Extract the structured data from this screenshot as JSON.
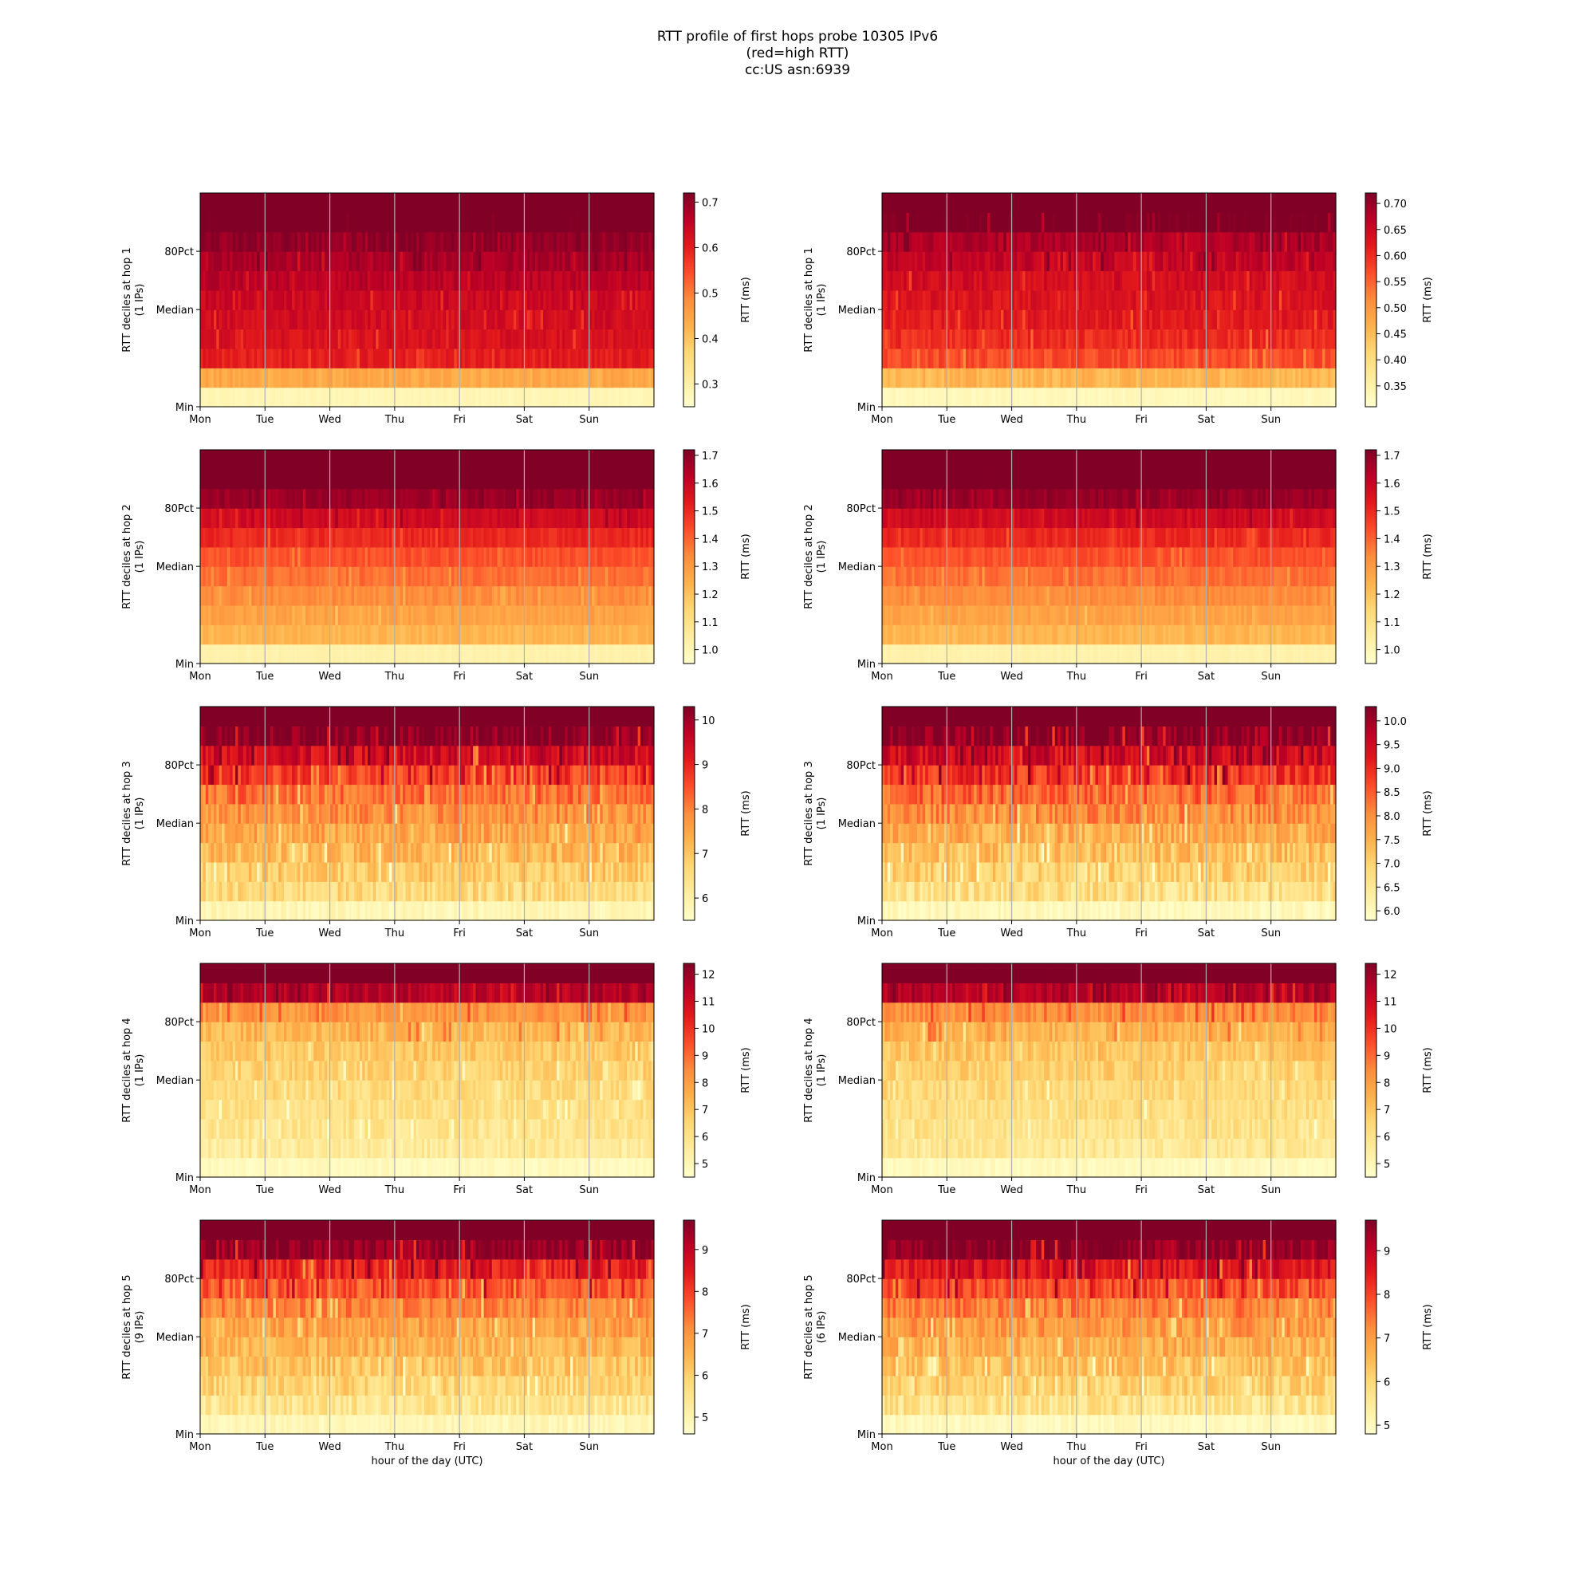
{
  "figure": {
    "title_lines": [
      "RTT profile of first hops probe 10305 IPv6",
      "(red=high RTT)",
      "cc:US asn:6939"
    ]
  },
  "colors": {
    "colormap": "YlOrRd",
    "stops": [
      "#ffffcc",
      "#ffeda0",
      "#fed976",
      "#feb24c",
      "#fd8d3c",
      "#fc4e2a",
      "#e31a1c",
      "#bd0026",
      "#800026"
    ],
    "vline": "#b0b0b0"
  },
  "chart_data": [
    {
      "type": "heatmap",
      "panel": "left",
      "hop": 1,
      "ylabel": "RTT deciles at hop 1",
      "ylabel2": "(1 IPs)",
      "xticks": [
        "Mon",
        "Tue",
        "Wed",
        "Thu",
        "Fri",
        "Sat",
        "Sun"
      ],
      "yticks": [
        "Min",
        "Median",
        "80Pct"
      ],
      "cbar_label": "RTT (ms)",
      "cbar_ticks": [
        0.3,
        0.4,
        0.5,
        0.6,
        0.7
      ],
      "cbar_tick_labels": [
        "0.3",
        "0.4",
        "0.5",
        "0.6",
        "0.7"
      ],
      "vmin": 0.25,
      "vmax": 0.72,
      "decile_values": [
        0.28,
        0.44,
        0.6,
        0.62,
        0.63,
        0.64,
        0.66,
        0.68,
        0.7,
        0.75,
        0.8
      ],
      "noise": 0.015
    },
    {
      "type": "heatmap",
      "panel": "right",
      "hop": 1,
      "ylabel": "RTT deciles at hop 1",
      "ylabel2": "(1 IPs)",
      "xticks": [
        "Mon",
        "Tue",
        "Wed",
        "Thu",
        "Fri",
        "Sat",
        "Sun"
      ],
      "yticks": [
        "Min",
        "Median",
        "80Pct"
      ],
      "cbar_label": "RTT (ms)",
      "cbar_ticks": [
        0.35,
        0.4,
        0.45,
        0.5,
        0.55,
        0.6,
        0.65,
        0.7
      ],
      "cbar_tick_labels": [
        "0.35",
        "0.40",
        "0.45",
        "0.50",
        "0.55",
        "0.60",
        "0.65",
        "0.70"
      ],
      "vmin": 0.31,
      "vmax": 0.72,
      "decile_values": [
        0.33,
        0.46,
        0.57,
        0.6,
        0.62,
        0.63,
        0.64,
        0.66,
        0.68,
        0.73,
        0.8
      ],
      "noise": 0.015
    },
    {
      "type": "heatmap",
      "panel": "left",
      "hop": 2,
      "ylabel": "RTT deciles at hop 2",
      "ylabel2": "(1 IPs)",
      "xticks": [
        "Mon",
        "Tue",
        "Wed",
        "Thu",
        "Fri",
        "Sat",
        "Sun"
      ],
      "yticks": [
        "Min",
        "Median",
        "80Pct"
      ],
      "cbar_label": "RTT (ms)",
      "cbar_ticks": [
        1.0,
        1.1,
        1.2,
        1.3,
        1.4,
        1.5,
        1.6,
        1.7
      ],
      "cbar_tick_labels": [
        "1.0",
        "1.1",
        "1.2",
        "1.3",
        "1.4",
        "1.5",
        "1.6",
        "1.7"
      ],
      "vmin": 0.95,
      "vmax": 1.72,
      "decile_values": [
        1.02,
        1.23,
        1.28,
        1.33,
        1.38,
        1.43,
        1.5,
        1.58,
        1.68,
        1.8,
        1.9
      ],
      "noise": 0.02
    },
    {
      "type": "heatmap",
      "panel": "right",
      "hop": 2,
      "ylabel": "RTT deciles at hop 2",
      "ylabel2": "(1 IPs)",
      "xticks": [
        "Mon",
        "Tue",
        "Wed",
        "Thu",
        "Fri",
        "Sat",
        "Sun"
      ],
      "yticks": [
        "Min",
        "Median",
        "80Pct"
      ],
      "cbar_label": "RTT (ms)",
      "cbar_ticks": [
        1.0,
        1.1,
        1.2,
        1.3,
        1.4,
        1.5,
        1.6,
        1.7
      ],
      "cbar_tick_labels": [
        "1.0",
        "1.1",
        "1.2",
        "1.3",
        "1.4",
        "1.5",
        "1.6",
        "1.7"
      ],
      "vmin": 0.95,
      "vmax": 1.72,
      "decile_values": [
        1.02,
        1.23,
        1.28,
        1.33,
        1.38,
        1.43,
        1.5,
        1.58,
        1.68,
        1.8,
        1.9
      ],
      "noise": 0.02
    },
    {
      "type": "heatmap",
      "panel": "left",
      "hop": 3,
      "ylabel": "RTT deciles at hop 3",
      "ylabel2": "(1 IPs)",
      "xticks": [
        "Mon",
        "Tue",
        "Wed",
        "Thu",
        "Fri",
        "Sat",
        "Sun"
      ],
      "yticks": [
        "Min",
        "Median",
        "80Pct"
      ],
      "cbar_label": "RTT (ms)",
      "cbar_ticks": [
        6,
        7,
        8,
        9,
        10
      ],
      "cbar_tick_labels": [
        "6",
        "7",
        "8",
        "9",
        "10"
      ],
      "vmin": 5.5,
      "vmax": 10.3,
      "decile_values": [
        5.8,
        6.6,
        6.9,
        7.2,
        7.5,
        7.8,
        8.2,
        8.7,
        9.4,
        10.2,
        11.0
      ],
      "noise": 0.35
    },
    {
      "type": "heatmap",
      "panel": "right",
      "hop": 3,
      "ylabel": "RTT deciles at hop 3",
      "ylabel2": "(1 IPs)",
      "xticks": [
        "Mon",
        "Tue",
        "Wed",
        "Thu",
        "Fri",
        "Sat",
        "Sun"
      ],
      "yticks": [
        "Min",
        "Median",
        "80Pct"
      ],
      "cbar_label": "RTT (ms)",
      "cbar_ticks": [
        6.0,
        6.5,
        7.0,
        7.5,
        8.0,
        8.5,
        9.0,
        9.5,
        10.0
      ],
      "cbar_tick_labels": [
        "6.0",
        "6.5",
        "7.0",
        "7.5",
        "8.0",
        "8.5",
        "9.0",
        "9.5",
        "10.0"
      ],
      "vmin": 5.8,
      "vmax": 10.3,
      "decile_values": [
        6.0,
        6.7,
        7.0,
        7.3,
        7.6,
        8.0,
        8.4,
        8.9,
        9.5,
        10.2,
        11.0
      ],
      "noise": 0.35
    },
    {
      "type": "heatmap",
      "panel": "left",
      "hop": 4,
      "ylabel": "RTT deciles at hop 4",
      "ylabel2": "(1 IPs)",
      "xticks": [
        "Mon",
        "Tue",
        "Wed",
        "Thu",
        "Fri",
        "Sat",
        "Sun"
      ],
      "yticks": [
        "Min",
        "Median",
        "80Pct"
      ],
      "cbar_label": "RTT (ms)",
      "cbar_ticks": [
        5,
        6,
        7,
        8,
        9,
        10,
        11,
        12
      ],
      "cbar_tick_labels": [
        "5",
        "6",
        "7",
        "8",
        "9",
        "10",
        "11",
        "12"
      ],
      "vmin": 4.5,
      "vmax": 12.4,
      "decile_values": [
        4.8,
        5.6,
        5.9,
        6.1,
        6.3,
        6.6,
        6.9,
        7.3,
        8.2,
        11.5,
        12.6
      ],
      "noise": 0.4
    },
    {
      "type": "heatmap",
      "panel": "right",
      "hop": 4,
      "ylabel": "RTT deciles at hop 4",
      "ylabel2": "(1 IPs)",
      "xticks": [
        "Mon",
        "Tue",
        "Wed",
        "Thu",
        "Fri",
        "Sat",
        "Sun"
      ],
      "yticks": [
        "Min",
        "Median",
        "80Pct"
      ],
      "cbar_label": "RTT (ms)",
      "cbar_ticks": [
        5,
        6,
        7,
        8,
        9,
        10,
        11,
        12
      ],
      "cbar_tick_labels": [
        "5",
        "6",
        "7",
        "8",
        "9",
        "10",
        "11",
        "12"
      ],
      "vmin": 4.5,
      "vmax": 12.4,
      "decile_values": [
        4.8,
        5.7,
        6.0,
        6.2,
        6.4,
        6.7,
        7.0,
        7.4,
        8.3,
        11.5,
        12.6
      ],
      "noise": 0.4
    },
    {
      "type": "heatmap",
      "panel": "left",
      "hop": 5,
      "ylabel": "RTT deciles at hop 5",
      "ylabel2": "(9 IPs)",
      "xticks": [
        "Mon",
        "Tue",
        "Wed",
        "Thu",
        "Fri",
        "Sat",
        "Sun"
      ],
      "yticks": [
        "Min",
        "Median",
        "80Pct"
      ],
      "cbar_label": "RTT (ms)",
      "cbar_ticks": [
        5,
        6,
        7,
        8,
        9
      ],
      "cbar_tick_labels": [
        "5",
        "6",
        "7",
        "8",
        "9"
      ],
      "vmin": 4.6,
      "vmax": 9.7,
      "decile_values": [
        4.9,
        5.5,
        5.9,
        6.2,
        6.5,
        6.8,
        7.2,
        7.7,
        8.4,
        9.5,
        10.5
      ],
      "noise": 0.35
    },
    {
      "type": "heatmap",
      "panel": "right",
      "hop": 5,
      "ylabel": "RTT deciles at hop 5",
      "ylabel2": "(6 IPs)",
      "xticks": [
        "Mon",
        "Tue",
        "Wed",
        "Thu",
        "Fri",
        "Sat",
        "Sun"
      ],
      "yticks": [
        "Min",
        "Median",
        "80Pct"
      ],
      "cbar_label": "RTT (ms)",
      "cbar_ticks": [
        5,
        6,
        7,
        8,
        9
      ],
      "cbar_tick_labels": [
        "5",
        "6",
        "7",
        "8",
        "9"
      ],
      "vmin": 4.8,
      "vmax": 9.7,
      "decile_values": [
        5.0,
        5.7,
        6.1,
        6.4,
        6.7,
        7.0,
        7.4,
        7.9,
        8.6,
        9.6,
        10.5
      ],
      "noise": 0.35
    }
  ],
  "xlabel_bottom": "hour of the day (UTC)"
}
